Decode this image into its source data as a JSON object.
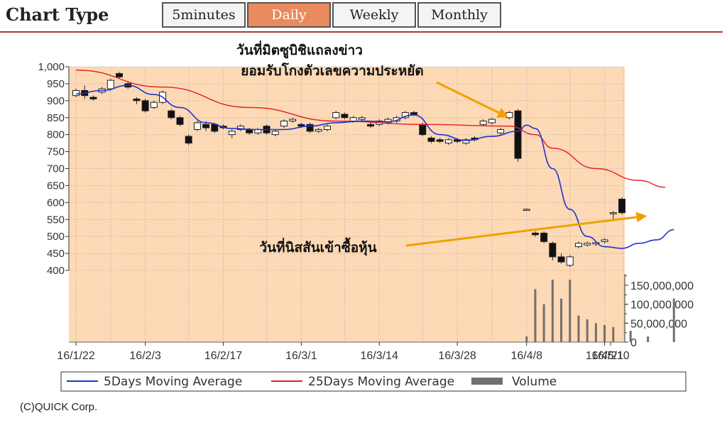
{
  "header": {
    "title": "Chart Type",
    "tabs": [
      {
        "label": "5minutes",
        "active": false
      },
      {
        "label": "Daily",
        "active": true
      },
      {
        "label": "Weekly",
        "active": false
      },
      {
        "label": "Monthly",
        "active": false
      }
    ]
  },
  "colors": {
    "plot_bg": "#fdd9b5",
    "ma5": "#2233cc",
    "ma25": "#e02020",
    "volume": "#707070",
    "arrow": "#f0a000",
    "accent": "#e98b5c"
  },
  "chart_data": {
    "type": "candlestick",
    "x_tick_labels": [
      "16/1/22",
      "16/2/3",
      "16/2/17",
      "16/3/1",
      "16/3/14",
      "16/3/28",
      "16/4/8",
      "16/4/21",
      "16/5/10"
    ],
    "price_axis": {
      "ylim": [
        400,
        1000
      ],
      "ticks": [
        "1,000",
        "950",
        "900",
        "850",
        "800",
        "750",
        "700",
        "650",
        "600",
        "550",
        "500",
        "450",
        "400"
      ]
    },
    "volume_axis": {
      "ylim": [
        0,
        180000000
      ],
      "ticks": [
        "150,000,000",
        "100,000,000",
        "50,000,000",
        "0"
      ]
    },
    "candles": [
      {
        "o": 915,
        "c": 930,
        "h": 935,
        "l": 910
      },
      {
        "o": 930,
        "c": 915,
        "h": 945,
        "l": 905
      },
      {
        "o": 910,
        "c": 905,
        "h": 915,
        "l": 900
      },
      {
        "o": 925,
        "c": 935,
        "h": 940,
        "l": 920
      },
      {
        "o": 935,
        "c": 960,
        "h": 965,
        "l": 930
      },
      {
        "o": 980,
        "c": 970,
        "h": 985,
        "l": 965
      },
      {
        "o": 950,
        "c": 940,
        "h": 955,
        "l": 935
      },
      {
        "o": 905,
        "c": 900,
        "h": 910,
        "l": 890
      },
      {
        "o": 900,
        "c": 870,
        "h": 905,
        "l": 865
      },
      {
        "o": 880,
        "c": 895,
        "h": 900,
        "l": 875
      },
      {
        "o": 895,
        "c": 925,
        "h": 930,
        "l": 890
      },
      {
        "o": 870,
        "c": 850,
        "h": 875,
        "l": 845
      },
      {
        "o": 850,
        "c": 830,
        "h": 855,
        "l": 825
      },
      {
        "o": 795,
        "c": 775,
        "h": 800,
        "l": 770
      },
      {
        "o": 815,
        "c": 835,
        "h": 840,
        "l": 810
      },
      {
        "o": 830,
        "c": 820,
        "h": 840,
        "l": 810
      },
      {
        "o": 830,
        "c": 810,
        "h": 835,
        "l": 805
      },
      {
        "o": 825,
        "c": 820,
        "h": 830,
        "l": 815
      },
      {
        "o": 800,
        "c": 810,
        "h": 815,
        "l": 790
      },
      {
        "o": 815,
        "c": 825,
        "h": 830,
        "l": 810
      },
      {
        "o": 815,
        "c": 805,
        "h": 820,
        "l": 800
      },
      {
        "o": 805,
        "c": 815,
        "h": 820,
        "l": 800
      },
      {
        "o": 825,
        "c": 805,
        "h": 830,
        "l": 800
      },
      {
        "o": 800,
        "c": 810,
        "h": 815,
        "l": 795
      },
      {
        "o": 825,
        "c": 840,
        "h": 845,
        "l": 820
      },
      {
        "o": 840,
        "c": 845,
        "h": 850,
        "l": 835
      },
      {
        "o": 830,
        "c": 825,
        "h": 835,
        "l": 820
      },
      {
        "o": 830,
        "c": 810,
        "h": 835,
        "l": 805
      },
      {
        "o": 810,
        "c": 815,
        "h": 820,
        "l": 805
      },
      {
        "o": 815,
        "c": 825,
        "h": 830,
        "l": 810
      },
      {
        "o": 850,
        "c": 865,
        "h": 870,
        "l": 845
      },
      {
        "o": 860,
        "c": 850,
        "h": 865,
        "l": 845
      },
      {
        "o": 840,
        "c": 850,
        "h": 855,
        "l": 835
      },
      {
        "o": 845,
        "c": 850,
        "h": 855,
        "l": 840
      },
      {
        "o": 830,
        "c": 825,
        "h": 840,
        "l": 820
      },
      {
        "o": 830,
        "c": 840,
        "h": 845,
        "l": 825
      },
      {
        "o": 835,
        "c": 845,
        "h": 850,
        "l": 830
      },
      {
        "o": 840,
        "c": 850,
        "h": 855,
        "l": 835
      },
      {
        "o": 850,
        "c": 865,
        "h": 870,
        "l": 845
      },
      {
        "o": 865,
        "c": 860,
        "h": 870,
        "l": 855
      },
      {
        "o": 830,
        "c": 800,
        "h": 835,
        "l": 795
      },
      {
        "o": 790,
        "c": 780,
        "h": 795,
        "l": 775
      },
      {
        "o": 785,
        "c": 780,
        "h": 790,
        "l": 775
      },
      {
        "o": 775,
        "c": 785,
        "h": 790,
        "l": 770
      },
      {
        "o": 785,
        "c": 780,
        "h": 790,
        "l": 775
      },
      {
        "o": 775,
        "c": 785,
        "h": 790,
        "l": 770
      },
      {
        "o": 790,
        "c": 785,
        "h": 795,
        "l": 780
      },
      {
        "o": 830,
        "c": 840,
        "h": 845,
        "l": 825
      },
      {
        "o": 835,
        "c": 845,
        "h": 850,
        "l": 830
      },
      {
        "o": 805,
        "c": 815,
        "h": 820,
        "l": 800
      },
      {
        "o": 850,
        "c": 865,
        "h": 870,
        "l": 845
      },
      {
        "o": 870,
        "c": 730,
        "h": 875,
        "l": 720
      },
      {
        "o": 580,
        "c": 580,
        "h": 583,
        "l": 577
      },
      {
        "o": 510,
        "c": 505,
        "h": 515,
        "l": 500
      },
      {
        "o": 510,
        "c": 485,
        "h": 515,
        "l": 480
      },
      {
        "o": 480,
        "c": 440,
        "h": 485,
        "l": 430
      },
      {
        "o": 440,
        "c": 425,
        "h": 450,
        "l": 420
      },
      {
        "o": 415,
        "c": 440,
        "h": 445,
        "l": 410
      },
      {
        "o": 470,
        "c": 480,
        "h": 485,
        "l": 465
      },
      {
        "o": 475,
        "c": 480,
        "h": 485,
        "l": 470
      },
      {
        "o": 478,
        "c": 482,
        "h": 485,
        "l": 472
      },
      {
        "o": 485,
        "c": 490,
        "h": 495,
        "l": 480
      },
      {
        "o": 570,
        "c": 570,
        "h": 575,
        "l": 545
      },
      {
        "o": 610,
        "c": 570,
        "h": 615,
        "l": 565
      }
    ],
    "ma5": [
      [
        0,
        920
      ],
      [
        3,
        930
      ],
      [
        6,
        945
      ],
      [
        9,
        918
      ],
      [
        12,
        880
      ],
      [
        15,
        835
      ],
      [
        18,
        818
      ],
      [
        21,
        815
      ],
      [
        24,
        815
      ],
      [
        27,
        825
      ],
      [
        30,
        835
      ],
      [
        33,
        840
      ],
      [
        36,
        838
      ],
      [
        39,
        858
      ],
      [
        42,
        800
      ],
      [
        45,
        783
      ],
      [
        48,
        795
      ],
      [
        51,
        810
      ],
      [
        52,
        828
      ],
      [
        53,
        818
      ],
      [
        55,
        700
      ],
      [
        57,
        580
      ],
      [
        59,
        500
      ],
      [
        61,
        470
      ],
      [
        63,
        465
      ],
      [
        65,
        480
      ],
      [
        67,
        490
      ],
      [
        69,
        520
      ]
    ],
    "ma25": [
      [
        0,
        990
      ],
      [
        10,
        940
      ],
      [
        20,
        880
      ],
      [
        30,
        840
      ],
      [
        40,
        830
      ],
      [
        50,
        825
      ],
      [
        53,
        800
      ],
      [
        55,
        760
      ],
      [
        60,
        700
      ],
      [
        65,
        665
      ],
      [
        68,
        645
      ]
    ],
    "volume": [
      {
        "i": 52,
        "v": 15000000
      },
      {
        "i": 53,
        "v": 140000000
      },
      {
        "i": 54,
        "v": 100000000
      },
      {
        "i": 55,
        "v": 165000000
      },
      {
        "i": 56,
        "v": 115000000
      },
      {
        "i": 57,
        "v": 165000000
      },
      {
        "i": 58,
        "v": 70000000
      },
      {
        "i": 59,
        "v": 60000000
      },
      {
        "i": 60,
        "v": 50000000
      },
      {
        "i": 61,
        "v": 45000000
      },
      {
        "i": 62,
        "v": 40000000
      },
      {
        "i": 64,
        "v": 30000000
      },
      {
        "i": 66,
        "v": 15000000
      },
      {
        "i": 69,
        "v": 115000000
      }
    ],
    "annotations": [
      {
        "text": "วันที่มิตซูบิชิแถลงข่าว\nยอมรับโกงตัวเลขความประหยัด",
        "points_to": {
          "i": 51,
          "price": 845
        }
      },
      {
        "text": "วันที่นิสสันเข้าซื้อหุ้น",
        "points_to": {
          "i": 65,
          "price": 560
        }
      }
    ],
    "legend": [
      "5Days Moving Average",
      "25Days Moving Average",
      "Volume"
    ],
    "legend_position": "bottom"
  },
  "footer": {
    "copyright": "(C)QUICK Corp."
  }
}
